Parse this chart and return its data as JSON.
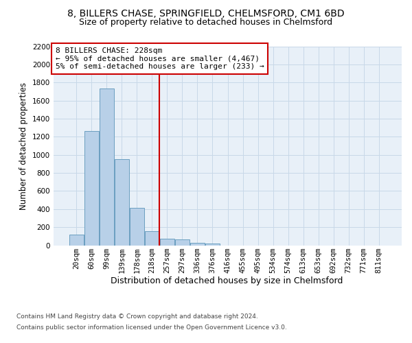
{
  "title": "8, BILLERS CHASE, SPRINGFIELD, CHELMSFORD, CM1 6BD",
  "subtitle": "Size of property relative to detached houses in Chelmsford",
  "xlabel": "Distribution of detached houses by size in Chelmsford",
  "ylabel": "Number of detached properties",
  "bar_labels": [
    "20sqm",
    "60sqm",
    "99sqm",
    "139sqm",
    "178sqm",
    "218sqm",
    "257sqm",
    "297sqm",
    "336sqm",
    "376sqm",
    "416sqm",
    "455sqm",
    "495sqm",
    "534sqm",
    "574sqm",
    "613sqm",
    "653sqm",
    "692sqm",
    "732sqm",
    "771sqm",
    "811sqm"
  ],
  "bar_values": [
    120,
    1260,
    1730,
    950,
    410,
    155,
    75,
    65,
    30,
    20,
    0,
    0,
    0,
    0,
    0,
    0,
    0,
    0,
    0,
    0,
    0
  ],
  "bar_color": "#b8d0e8",
  "bar_edge_color": "#6a9fc0",
  "vline_x": 5.5,
  "vline_color": "#cc0000",
  "annotation_text": "8 BILLERS CHASE: 228sqm\n← 95% of detached houses are smaller (4,467)\n5% of semi-detached houses are larger (233) →",
  "annotation_box_color": "#ffffff",
  "annotation_box_edgecolor": "#cc0000",
  "ylim": [
    0,
    2200
  ],
  "yticks": [
    0,
    200,
    400,
    600,
    800,
    1000,
    1200,
    1400,
    1600,
    1800,
    2000,
    2200
  ],
  "grid_color": "#c8d8e8",
  "bg_color": "#e8f0f8",
  "footer_line1": "Contains HM Land Registry data © Crown copyright and database right 2024.",
  "footer_line2": "Contains public sector information licensed under the Open Government Licence v3.0.",
  "title_fontsize": 10,
  "subtitle_fontsize": 9,
  "annotation_fontsize": 8,
  "ylabel_fontsize": 8.5,
  "xlabel_fontsize": 9,
  "tick_fontsize": 7.5,
  "footer_fontsize": 6.5
}
